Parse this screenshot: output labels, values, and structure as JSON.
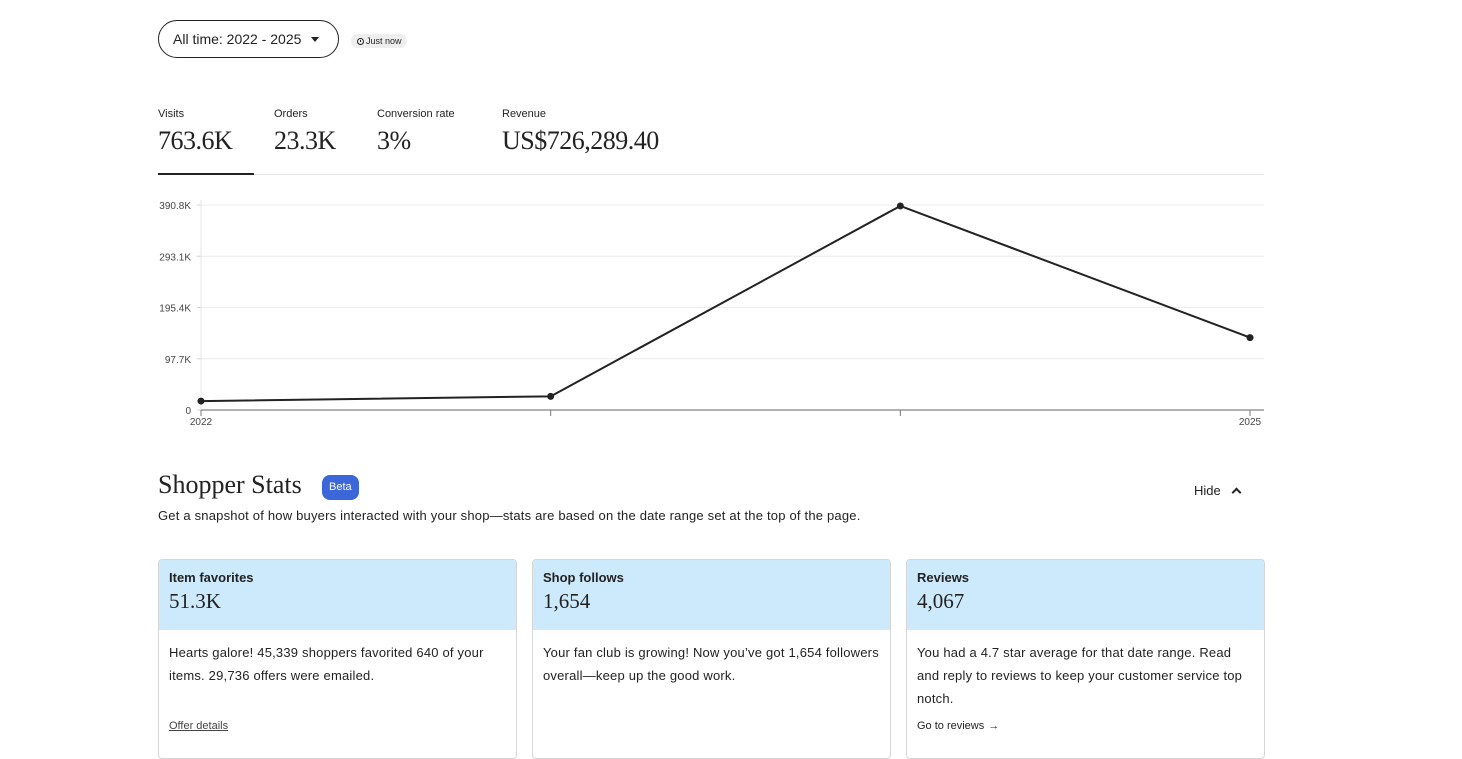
{
  "toolbar": {
    "date_range_label": "All time: 2022 - 2025",
    "updated_label": "Just now"
  },
  "metrics": [
    {
      "label": "Visits",
      "value": "763.6K"
    },
    {
      "label": "Orders",
      "value": "23.3K"
    },
    {
      "label": "Conversion rate",
      "value": "3%"
    },
    {
      "label": "Revenue",
      "value": "US$726,289.40"
    }
  ],
  "chart_data": {
    "type": "line",
    "x": [
      2022,
      2023,
      2024,
      2025
    ],
    "x_tick_labels": [
      "2022",
      "",
      "",
      "2025"
    ],
    "values": [
      17000,
      26000,
      389000,
      138000
    ],
    "y_ticks": [
      "0",
      "97.7K",
      "195.4K",
      "293.1K",
      "390.8K"
    ],
    "y_tick_values": [
      0,
      97700,
      195400,
      293100,
      390800
    ],
    "ylim": [
      0,
      390800
    ],
    "grid": true,
    "color": "#222222"
  },
  "shopper_stats": {
    "title": "Shopper Stats",
    "badge": "Beta",
    "hide_label": "Hide",
    "description": "Get a snapshot of how buyers interacted with your shop—stats are based on the date range set at the top of the page.",
    "cards": [
      {
        "title": "Item favorites",
        "value": "51.3K",
        "body": "Hearts galore! 45,339 shoppers favorited 640 of your items. 29,736 offers were emailed.",
        "link": "Offer details"
      },
      {
        "title": "Shop follows",
        "value": "1,654",
        "body": "Your fan club is growing! Now you’ve got 1,654 followers overall—keep up the good work.",
        "link": ""
      },
      {
        "title": "Reviews",
        "value": "4,067",
        "body": "You had a 4.7 star average for that date range. Read and reply to reviews to keep your customer service top notch.",
        "link": "Go to reviews"
      }
    ]
  },
  "colors": {
    "card_header": "#cdeafc",
    "badge": "#3b67d8",
    "line": "#222222"
  }
}
